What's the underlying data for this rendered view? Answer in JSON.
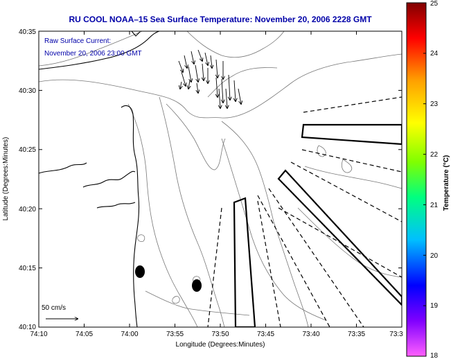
{
  "title": "RU COOL  NOAA–15  Sea Surface Temperature:  November 20, 2006 2228 GMT",
  "annotation": {
    "line1": "Raw Surface Current:",
    "line2": "November 20, 2006 23:00 GMT"
  },
  "scale_label": "50 cm/s",
  "x_axis": {
    "label": "Longitude (Degrees:Minutes)",
    "ticks": [
      "74:10",
      "74:05",
      "74:00",
      "73:55",
      "73:50",
      "73:45",
      "73:40",
      "73:35",
      "73:3"
    ]
  },
  "y_axis": {
    "label": "Latitude (Degrees:Minutes)",
    "ticks": [
      "40:35",
      "40:30",
      "40:25",
      "40:20",
      "40:15",
      "40:10"
    ]
  },
  "colorbar": {
    "label": "Temperature (°C)",
    "ticks": [
      "25",
      "24",
      "23",
      "22",
      "21",
      "20",
      "19",
      "18"
    ],
    "min": 18,
    "max": 25,
    "colors": [
      "#ff60ff",
      "#8000ff",
      "#0000ff",
      "#00c0ff",
      "#00ff80",
      "#80ff00",
      "#ffff00",
      "#ffa000",
      "#ff0000",
      "#800000"
    ]
  },
  "colors": {
    "title": "#0000a8",
    "coast": "#000000",
    "bathymetry": "#777777"
  }
}
